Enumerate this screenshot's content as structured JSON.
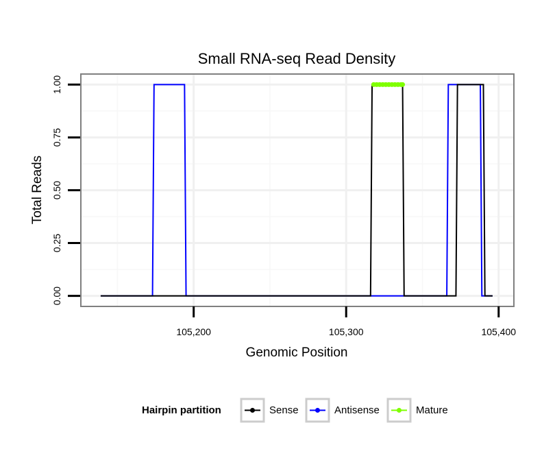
{
  "chart_data": {
    "type": "line",
    "title": "Small RNA-seq Read Density",
    "xlabel": "Genomic Position",
    "ylabel": "Total Reads",
    "xlim": [
      105126,
      105410
    ],
    "ylim": [
      -0.05,
      1.05
    ],
    "x_ticks": [
      105200,
      105300,
      105400
    ],
    "x_tick_labels": [
      "105,200",
      "105,300",
      "105,400"
    ],
    "y_ticks": [
      0,
      0.25,
      0.5,
      0.75,
      1
    ],
    "y_tick_labels": [
      "0.00",
      "0.25",
      "0.50",
      "0.75",
      "1.00"
    ],
    "grid": true,
    "series": [
      {
        "name": "Sense",
        "color": "#000000",
        "x": [
          105139,
          105316,
          105317,
          105337,
          105338,
          105372,
          105373,
          105390,
          105391,
          105396
        ],
        "y": [
          0,
          0,
          1,
          1,
          0,
          0,
          1,
          1,
          0,
          0
        ]
      },
      {
        "name": "Antisense",
        "color": "#0000ff",
        "x": [
          105139,
          105173,
          105174,
          105194,
          105195,
          105366,
          105367,
          105388,
          105389,
          105396
        ],
        "y": [
          0,
          0,
          1,
          1,
          0,
          0,
          1,
          1,
          0,
          0
        ]
      },
      {
        "name": "Mature",
        "color": "#7fff00",
        "x": [
          105318,
          105320,
          105322,
          105324,
          105326,
          105328,
          105330,
          105332,
          105334,
          105336,
          105337
        ],
        "y": [
          1,
          1,
          1,
          1,
          1,
          1,
          1,
          1,
          1,
          1,
          1
        ]
      }
    ],
    "legend": {
      "title": "Hairpin partition",
      "position": "bottom",
      "entries": [
        "Sense",
        "Antisense",
        "Mature"
      ]
    }
  }
}
